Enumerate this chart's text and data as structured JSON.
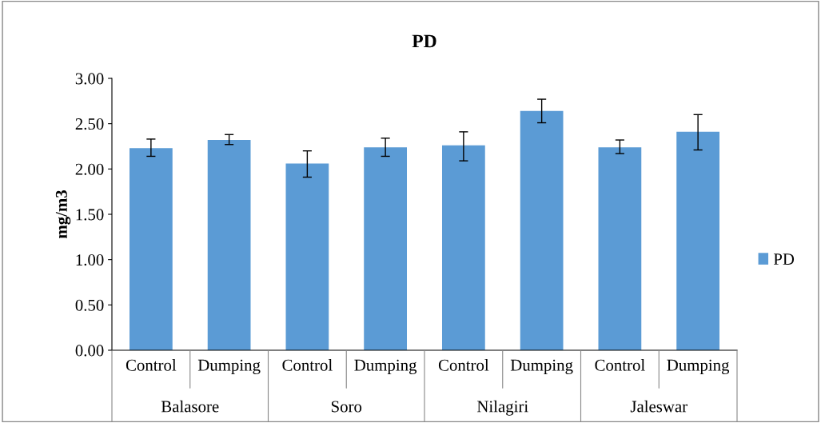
{
  "chart_data": {
    "type": "bar",
    "title": "PD",
    "ylabel": "mg/m3",
    "categories": [
      "Control",
      "Dumping",
      "Control",
      "Dumping",
      "Control",
      "Dumping",
      "Control",
      "Dumping"
    ],
    "annotations": [
      "Balasore",
      "Soro",
      "Nilagiri",
      "Jaleswar"
    ],
    "series": [
      {
        "name": "PD",
        "color": "#5b9bd5",
        "values": [
          2.23,
          2.32,
          2.06,
          2.24,
          2.26,
          2.64,
          2.24,
          2.41
        ],
        "errors": [
          [
            2.14,
            2.33
          ],
          [
            2.27,
            2.38
          ],
          [
            1.91,
            2.2
          ],
          [
            2.14,
            2.34
          ],
          [
            2.09,
            2.41
          ],
          [
            2.51,
            2.77
          ],
          [
            2.17,
            2.32
          ],
          [
            2.21,
            2.6
          ]
        ]
      }
    ],
    "ylim": [
      0,
      3
    ],
    "yticks": [
      {
        "value": 0,
        "label": "0.00"
      },
      {
        "value": 0.5,
        "label": "0.50"
      },
      {
        "value": 1,
        "label": "1.00"
      },
      {
        "value": 1.5,
        "label": "1.50"
      },
      {
        "value": 2,
        "label": "2.00"
      },
      {
        "value": 2.5,
        "label": "2.50"
      },
      {
        "value": 3,
        "label": "3.00"
      }
    ],
    "grid": false,
    "legend": "right"
  }
}
